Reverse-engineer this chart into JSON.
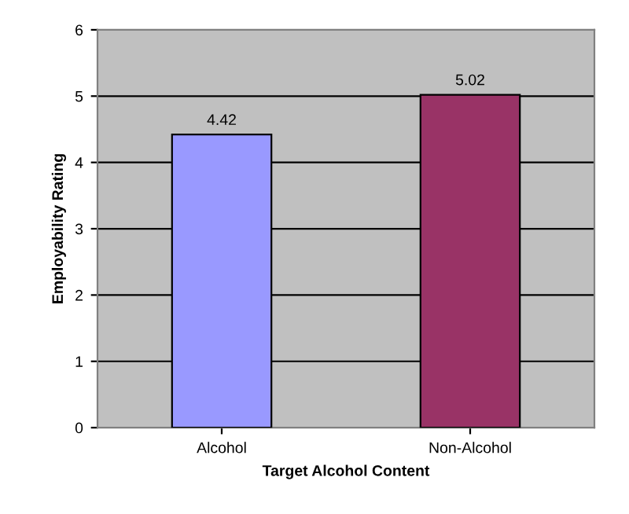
{
  "chart_data": {
    "type": "bar",
    "xlabel": "Target Alcohol Content",
    "ylabel": "Employability Rating",
    "categories": [
      "Alcohol",
      "Non-Alcohol"
    ],
    "values": [
      4.42,
      5.02
    ],
    "colors": [
      "#9999ff",
      "#993366"
    ],
    "ylim": [
      0,
      6
    ],
    "yticks": [
      0,
      1,
      2,
      3,
      4,
      5,
      6
    ],
    "grid": "y",
    "data_labels": true
  }
}
